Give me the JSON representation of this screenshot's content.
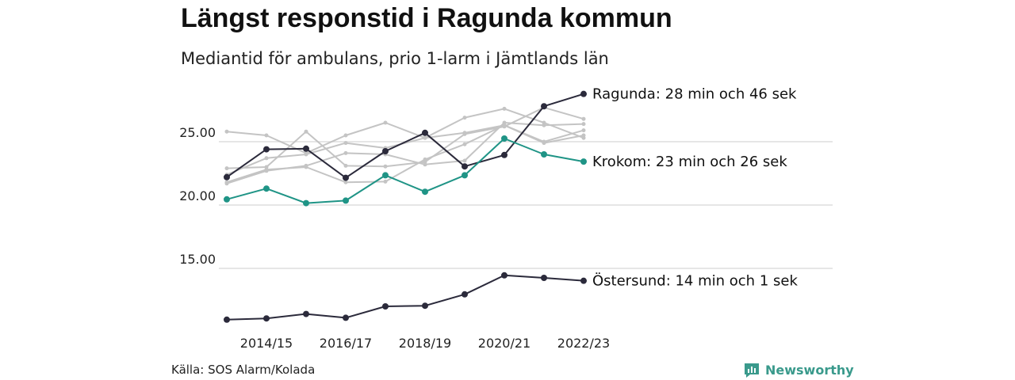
{
  "title": "Längst responstid i Ragunda kommun",
  "subtitle": "Mediantid för ambulans, prio 1-larm i Jämtlands län",
  "source": "Källa: SOS Alarm/Kolada",
  "brand": {
    "name": "Newsworthy",
    "icon": "newsworthy-logo-icon",
    "color": "#3a9a8c"
  },
  "colors": {
    "highlight_dark": "#2b2a3b",
    "highlight_teal": "#1f9486",
    "background_series": "#c4c4c4",
    "grid": "#dddddd"
  },
  "chart_data": {
    "type": "line",
    "x": [
      "2013/14",
      "2014/15",
      "2015/16",
      "2016/17",
      "2017/18",
      "2018/19",
      "2019/20",
      "2020/21",
      "2021/22",
      "2022/23"
    ],
    "x_tick_labels": [
      "2014/15",
      "2016/17",
      "2018/19",
      "2020/21",
      "2022/23"
    ],
    "y_ticks": [
      15,
      20,
      25
    ],
    "y_tick_labels": [
      "15.00",
      "20.00",
      "25.00"
    ],
    "ylim": [
      10.5,
      29.3
    ],
    "grid": true,
    "highlighted_series": [
      {
        "name": "Ragunda",
        "label": "Ragunda: 28 min och 46 sek",
        "color": "#2b2a3b",
        "values": [
          22.2,
          24.4,
          24.45,
          22.15,
          24.25,
          25.7,
          23.05,
          23.95,
          27.8,
          28.77
        ]
      },
      {
        "name": "Krokom",
        "label": "Krokom: 23 min och 26 sek",
        "color": "#1f9486",
        "values": [
          20.45,
          21.3,
          20.15,
          20.35,
          22.35,
          21.05,
          22.35,
          25.25,
          24.0,
          23.43
        ]
      },
      {
        "name": "Östersund",
        "label": "Östersund: 14 min och 1 sek",
        "color": "#2b2a3b",
        "values": [
          10.95,
          11.05,
          11.4,
          11.1,
          12.0,
          12.05,
          12.95,
          14.45,
          14.25,
          14.02
        ]
      }
    ],
    "other_series": [
      {
        "values": [
          25.8,
          25.5,
          24.1,
          25.5,
          26.5,
          25.3,
          26.9,
          27.6,
          26.5,
          25.3
        ]
      },
      {
        "values": [
          22.9,
          23.0,
          25.8,
          23.1,
          23.05,
          23.4,
          25.6,
          26.2,
          27.7,
          26.8
        ]
      },
      {
        "values": [
          21.7,
          22.7,
          23.1,
          24.1,
          24.0,
          23.2,
          23.5,
          26.5,
          26.3,
          26.4
        ]
      },
      {
        "values": [
          22.4,
          23.7,
          24.0,
          24.9,
          24.5,
          25.3,
          25.7,
          26.3,
          25.0,
          25.9
        ]
      },
      {
        "values": [
          21.8,
          22.8,
          23.0,
          21.8,
          21.85,
          23.6,
          24.8,
          26.3,
          24.9,
          25.5
        ]
      }
    ]
  }
}
